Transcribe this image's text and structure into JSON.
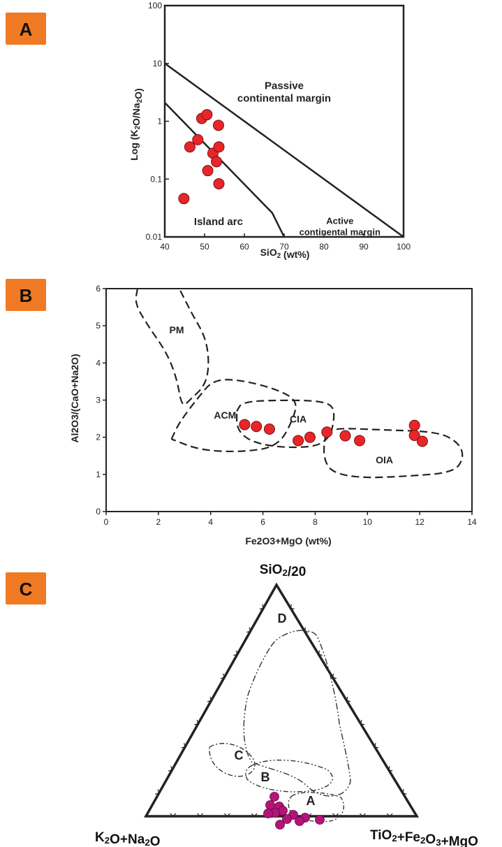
{
  "colors": {
    "badge": "#f07a24",
    "point_red": "#e8262a",
    "point_magenta": "#b5137a",
    "line": "#222222"
  },
  "chart_data": [
    {
      "panel": "A",
      "type": "scatter",
      "xlabel": "SiO2 (wt%)",
      "ylabel": "Log (K2O/Na2O)",
      "xlim": [
        40,
        100
      ],
      "ylim": [
        0.01,
        100
      ],
      "yscale": "log",
      "xticks": [
        "40",
        "50",
        "60",
        "70",
        "80",
        "90",
        "100"
      ],
      "yticks": [
        "0.01",
        "0.1",
        "1",
        "10",
        "100"
      ],
      "boundaries": [
        {
          "x": [
            40,
            100
          ],
          "y": [
            10,
            0.01
          ]
        },
        {
          "x": [
            40,
            67,
            70
          ],
          "y": [
            2.1,
            0.026,
            0.01
          ]
        }
      ],
      "regions": [
        {
          "name": "Passive\ncontinental margin",
          "x": 70,
          "y": 2.8
        },
        {
          "name": "Island arc",
          "x": 53.5,
          "y": 0.016
        },
        {
          "name": "Active\ncontinental margin",
          "x": 84,
          "y": 0.013
        }
      ],
      "points": [
        {
          "x": 44.8,
          "y": 0.046
        },
        {
          "x": 46.3,
          "y": 0.36
        },
        {
          "x": 48.3,
          "y": 0.48
        },
        {
          "x": 49.3,
          "y": 1.12
        },
        {
          "x": 50.6,
          "y": 1.3
        },
        {
          "x": 50.8,
          "y": 0.14
        },
        {
          "x": 52.1,
          "y": 0.28
        },
        {
          "x": 53.0,
          "y": 0.2
        },
        {
          "x": 53.5,
          "y": 0.85
        },
        {
          "x": 53.6,
          "y": 0.36
        },
        {
          "x": 53.6,
          "y": 0.083
        }
      ]
    },
    {
      "panel": "B",
      "type": "scatter",
      "xlabel": "Fe2O3+MgO (wt%)",
      "ylabel": "Al2O3/(CaO+Na2O)",
      "xlim": [
        0,
        14
      ],
      "ylim": [
        0,
        6
      ],
      "xticks": [
        "0",
        "2",
        "4",
        "6",
        "8",
        "10",
        "12",
        "14"
      ],
      "yticks": [
        "0",
        "1",
        "2",
        "3",
        "4",
        "5",
        "6"
      ],
      "regions": [
        {
          "name": "PM",
          "x": 2.7,
          "y": 4.8,
          "outline": [
            [
              1.2,
              6
            ],
            [
              1.1,
              5.6
            ],
            [
              1.6,
              5
            ],
            [
              2.3,
              4.3
            ],
            [
              2.7,
              3.6
            ],
            [
              2.9,
              2.8
            ],
            [
              3.2,
              3.0
            ],
            [
              3.8,
              3.4
            ],
            [
              3.95,
              4.0
            ],
            [
              3.8,
              4.7
            ],
            [
              3.3,
              5.3
            ],
            [
              2.8,
              6
            ]
          ]
        },
        {
          "name": "ACM",
          "x": 4.55,
          "y": 2.5,
          "outline": [
            [
              2.5,
              1.95
            ],
            [
              2.8,
              2.4
            ],
            [
              3.5,
              3.05
            ],
            [
              4.1,
              3.55
            ],
            [
              5.1,
              3.55
            ],
            [
              6.5,
              3.3
            ],
            [
              7.3,
              3.0
            ],
            [
              7.2,
              2.55
            ],
            [
              6.6,
              1.75
            ],
            [
              5.2,
              1.6
            ],
            [
              3.6,
              1.65
            ],
            [
              2.5,
              1.95
            ]
          ]
        },
        {
          "name": "CIA",
          "x": 7.35,
          "y": 2.4,
          "outline": [
            [
              5.0,
              2.7
            ],
            [
              5.2,
              2.95
            ],
            [
              6.5,
              3.0
            ],
            [
              8.4,
              2.98
            ],
            [
              8.8,
              2.7
            ],
            [
              8.5,
              1.8
            ],
            [
              7.0,
              1.7
            ],
            [
              5.6,
              1.85
            ],
            [
              5.0,
              2.2
            ],
            [
              5.0,
              2.7
            ]
          ]
        },
        {
          "name": "OIA",
          "x": 10.65,
          "y": 1.3,
          "outline": [
            [
              8.4,
              2.1
            ],
            [
              8.8,
              2.25
            ],
            [
              10.5,
              2.2
            ],
            [
              12.7,
              2.15
            ],
            [
              13.5,
              1.85
            ],
            [
              13.7,
              1.45
            ],
            [
              13.3,
              1.05
            ],
            [
              11.5,
              0.95
            ],
            [
              9.8,
              0.9
            ],
            [
              8.6,
              1.05
            ],
            [
              8.3,
              1.5
            ],
            [
              8.4,
              2.1
            ]
          ]
        }
      ],
      "points": [
        {
          "x": 5.3,
          "y": 2.34
        },
        {
          "x": 5.75,
          "y": 2.29
        },
        {
          "x": 6.25,
          "y": 2.22
        },
        {
          "x": 7.35,
          "y": 1.91
        },
        {
          "x": 7.8,
          "y": 2.0
        },
        {
          "x": 8.45,
          "y": 2.14
        },
        {
          "x": 9.15,
          "y": 2.04
        },
        {
          "x": 9.7,
          "y": 1.91
        },
        {
          "x": 11.8,
          "y": 2.32
        },
        {
          "x": 11.8,
          "y": 2.05
        },
        {
          "x": 12.1,
          "y": 1.89
        }
      ]
    },
    {
      "panel": "C",
      "type": "ternary",
      "vertices": {
        "top": "SiO2/20",
        "left": "K2O+Na2O",
        "right": "TiO2+Fe2O3+MgO"
      },
      "regions": [
        {
          "name": "D"
        },
        {
          "name": "C"
        },
        {
          "name": "B"
        },
        {
          "name": "A"
        }
      ],
      "points_count": 12
    }
  ],
  "panels": {
    "a": {
      "badge": "A"
    },
    "b": {
      "badge": "B"
    },
    "c": {
      "badge": "C"
    }
  }
}
